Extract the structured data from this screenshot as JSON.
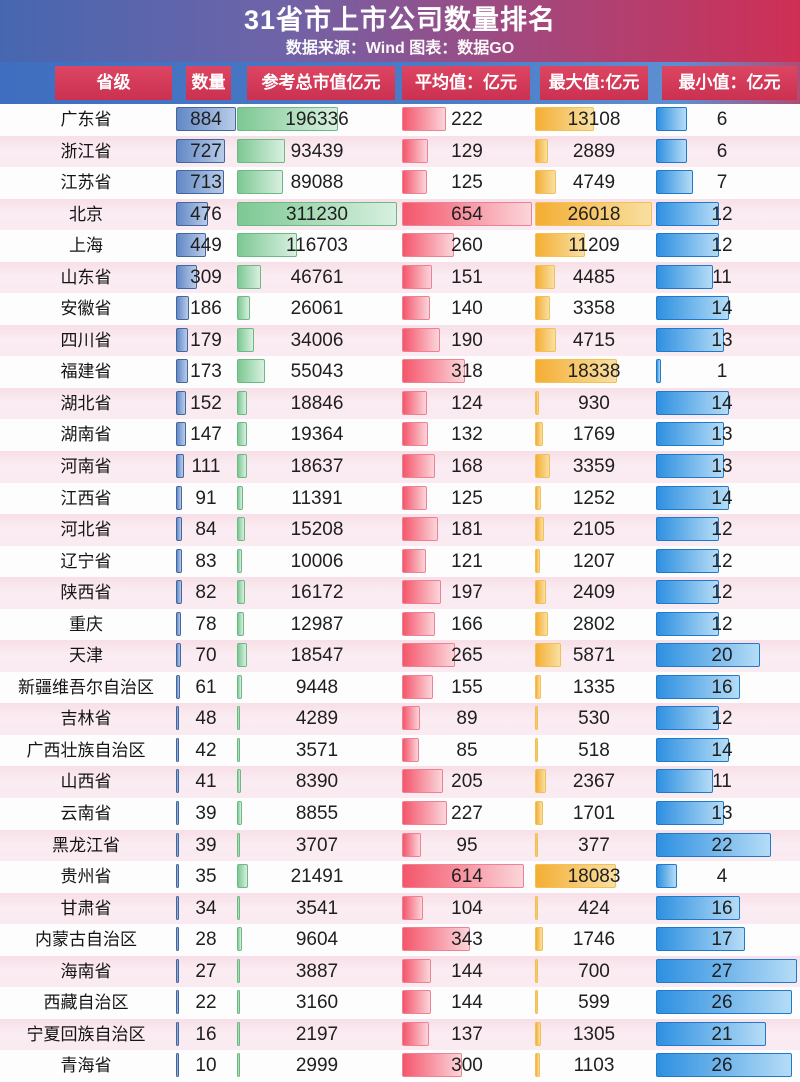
{
  "title": "31省市上市公司数量排名",
  "subtitle": "数据来源：Wind 图表：数据GO",
  "columns": [
    "省级",
    "数量",
    "参考总市值亿元",
    "平均值：亿元",
    "最大值:亿元",
    "最小值：亿元"
  ],
  "chart_data": {
    "type": "table",
    "title": "31省市上市公司数量排名",
    "source_note": "数据来源：Wind 图表：数据GO",
    "columns": [
      "省级",
      "数量",
      "参考总市值亿元",
      "平均值：亿元",
      "最大值:亿元",
      "最小值：亿元"
    ],
    "bars": "each numeric cell shows a horizontal bar proportional to its value within the column",
    "rows": [
      {
        "province": "广东省",
        "count": 884,
        "market_cap": 196336,
        "avg": 222,
        "max": 13108,
        "min": 6
      },
      {
        "province": "浙江省",
        "count": 727,
        "market_cap": 93439,
        "avg": 129,
        "max": 2889,
        "min": 6
      },
      {
        "province": "江苏省",
        "count": 713,
        "market_cap": 89088,
        "avg": 125,
        "max": 4749,
        "min": 7
      },
      {
        "province": "北京",
        "count": 476,
        "market_cap": 311230,
        "avg": 654,
        "max": 26018,
        "min": 12
      },
      {
        "province": "上海",
        "count": 449,
        "market_cap": 116703,
        "avg": 260,
        "max": 11209,
        "min": 12
      },
      {
        "province": "山东省",
        "count": 309,
        "market_cap": 46761,
        "avg": 151,
        "max": 4485,
        "min": 11
      },
      {
        "province": "安徽省",
        "count": 186,
        "market_cap": 26061,
        "avg": 140,
        "max": 3358,
        "min": 14
      },
      {
        "province": "四川省",
        "count": 179,
        "market_cap": 34006,
        "avg": 190,
        "max": 4715,
        "min": 13
      },
      {
        "province": "福建省",
        "count": 173,
        "market_cap": 55043,
        "avg": 318,
        "max": 18338,
        "min": 1
      },
      {
        "province": "湖北省",
        "count": 152,
        "market_cap": 18846,
        "avg": 124,
        "max": 930,
        "min": 14
      },
      {
        "province": "湖南省",
        "count": 147,
        "market_cap": 19364,
        "avg": 132,
        "max": 1769,
        "min": 13
      },
      {
        "province": "河南省",
        "count": 111,
        "market_cap": 18637,
        "avg": 168,
        "max": 3359,
        "min": 13
      },
      {
        "province": "江西省",
        "count": 91,
        "market_cap": 11391,
        "avg": 125,
        "max": 1252,
        "min": 14
      },
      {
        "province": "河北省",
        "count": 84,
        "market_cap": 15208,
        "avg": 181,
        "max": 2105,
        "min": 12
      },
      {
        "province": "辽宁省",
        "count": 83,
        "market_cap": 10006,
        "avg": 121,
        "max": 1207,
        "min": 12
      },
      {
        "province": "陕西省",
        "count": 82,
        "market_cap": 16172,
        "avg": 197,
        "max": 2409,
        "min": 12
      },
      {
        "province": "重庆",
        "count": 78,
        "market_cap": 12987,
        "avg": 166,
        "max": 2802,
        "min": 12
      },
      {
        "province": "天津",
        "count": 70,
        "market_cap": 18547,
        "avg": 265,
        "max": 5871,
        "min": 20
      },
      {
        "province": "新疆维吾尔自治区",
        "count": 61,
        "market_cap": 9448,
        "avg": 155,
        "max": 1335,
        "min": 16
      },
      {
        "province": "吉林省",
        "count": 48,
        "market_cap": 4289,
        "avg": 89,
        "max": 530,
        "min": 12
      },
      {
        "province": "广西壮族自治区",
        "count": 42,
        "market_cap": 3571,
        "avg": 85,
        "max": 518,
        "min": 14
      },
      {
        "province": "山西省",
        "count": 41,
        "market_cap": 8390,
        "avg": 205,
        "max": 2367,
        "min": 11
      },
      {
        "province": "云南省",
        "count": 39,
        "market_cap": 8855,
        "avg": 227,
        "max": 1701,
        "min": 13
      },
      {
        "province": "黑龙江省",
        "count": 39,
        "market_cap": 3707,
        "avg": 95,
        "max": 377,
        "min": 22
      },
      {
        "province": "贵州省",
        "count": 35,
        "market_cap": 21491,
        "avg": 614,
        "max": 18083,
        "min": 4
      },
      {
        "province": "甘肃省",
        "count": 34,
        "market_cap": 3541,
        "avg": 104,
        "max": 424,
        "min": 16
      },
      {
        "province": "内蒙古自治区",
        "count": 28,
        "market_cap": 9604,
        "avg": 343,
        "max": 1746,
        "min": 17
      },
      {
        "province": "海南省",
        "count": 27,
        "market_cap": 3887,
        "avg": 144,
        "max": 700,
        "min": 27
      },
      {
        "province": "西藏自治区",
        "count": 22,
        "market_cap": 3160,
        "avg": 144,
        "max": 599,
        "min": 26
      },
      {
        "province": "宁夏回族自治区",
        "count": 16,
        "market_cap": 2197,
        "avg": 137,
        "max": 1305,
        "min": 21
      },
      {
        "province": "青海省",
        "count": 10,
        "market_cap": 2999,
        "avg": 300,
        "max": 1103,
        "min": 26
      }
    ]
  },
  "colors": {
    "banner_gradient_left": "#4667b0",
    "banner_gradient_right": "#cf2f55",
    "header_band_blue": "#3f6ec0",
    "header_box_red": "#d03a58",
    "count_bar_blue": "#6288c6",
    "market_cap_bar_green": "#7dc893",
    "avg_bar_red": "#f4566b",
    "max_bar_orange": "#f4ae33",
    "min_bar_blue": "#2e90e1",
    "stripe_pink": "#f6dce6"
  }
}
